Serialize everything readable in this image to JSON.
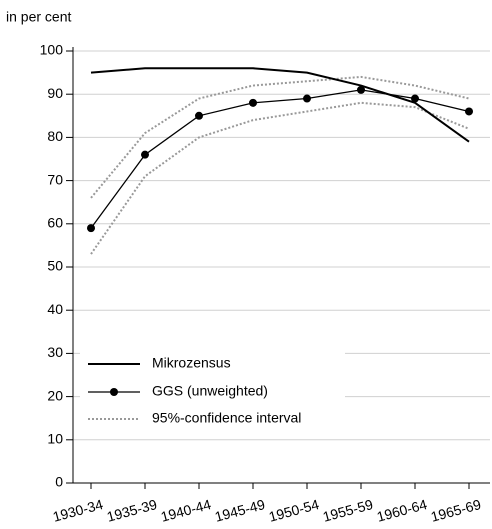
{
  "chart_data": {
    "type": "line",
    "y_label": "in per cent",
    "categories": [
      "1930-34",
      "1935-39",
      "1940-44",
      "1945-49",
      "1950-54",
      "1955-59",
      "1960-64",
      "1965-69"
    ],
    "series": [
      {
        "name": "Mikrozensus",
        "color": "#000000",
        "values": [
          95,
          96,
          96,
          96,
          95,
          92,
          88,
          79
        ]
      },
      {
        "name": "GGS (unweighted)",
        "color": "#000000",
        "markers": true,
        "values": [
          59,
          76,
          85,
          88,
          89,
          91,
          89,
          86
        ]
      }
    ],
    "interval": {
      "name": "95%-confidence interval",
      "color": "#999999",
      "upper": [
        66,
        81,
        89,
        92,
        93,
        94,
        92,
        89
      ],
      "lower": [
        53,
        71,
        80,
        84,
        86,
        88,
        87,
        82
      ]
    },
    "ylim": [
      0,
      100
    ],
    "yticks": [
      0,
      10,
      20,
      30,
      40,
      50,
      60,
      70,
      80,
      90,
      100
    ],
    "grid": true
  }
}
